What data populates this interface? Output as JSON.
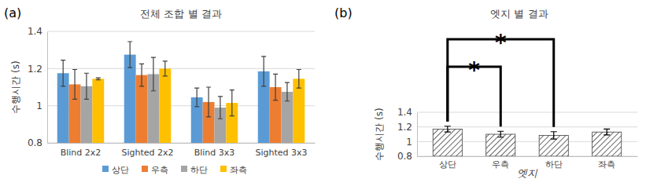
{
  "chart_data": [
    {
      "type": "bar",
      "panel_label": "(a)",
      "title": "전체 조합 별 결과",
      "y_label": "수행시간 (s)",
      "categories": [
        "Blind 2x2",
        "Sighted 2x2",
        "Blind 3x3",
        "Sighted 3x3"
      ],
      "series": [
        {
          "name": "상단",
          "color": "#5b9bd5",
          "values": [
            1.175,
            1.275,
            1.045,
            1.185
          ],
          "errors": [
            0.07,
            0.07,
            0.05,
            0.08
          ]
        },
        {
          "name": "우측",
          "color": "#ed7d31",
          "values": [
            1.115,
            1.165,
            1.02,
            1.1
          ],
          "errors": [
            0.08,
            0.06,
            0.08,
            0.07
          ]
        },
        {
          "name": "하단",
          "color": "#a5a5a5",
          "values": [
            1.105,
            1.17,
            0.99,
            1.075
          ],
          "errors": [
            0.07,
            0.09,
            0.06,
            0.05
          ]
        },
        {
          "name": "좌측",
          "color": "#ffc000",
          "values": [
            1.145,
            1.2,
            1.015,
            1.145
          ],
          "errors": [
            0.005,
            0.04,
            0.07,
            0.05
          ]
        }
      ],
      "ylim": [
        0.8,
        1.4
      ],
      "yticks": [
        0.8,
        1,
        1.2,
        1.4
      ],
      "grid": true,
      "legend": "bottom"
    },
    {
      "type": "bar",
      "panel_label": "(b)",
      "title": "엣지 별 결과",
      "y_label": "수행시간 (s)",
      "x_label": "엣지",
      "categories": [
        "상단",
        "우측",
        "하단",
        "좌측"
      ],
      "values": [
        1.17,
        1.1,
        1.085,
        1.13
      ],
      "errors": [
        0.04,
        0.04,
        0.05,
        0.04
      ],
      "color": "#404040",
      "ylim": [
        0.8,
        1.4
      ],
      "yticks": [
        0.8,
        1,
        1.2,
        1.4
      ],
      "grid": true,
      "annotations": [
        {
          "text": "*",
          "between": [
            "상단",
            "우측"
          ]
        },
        {
          "text": "*",
          "between": [
            "상단",
            "하단"
          ]
        }
      ]
    }
  ]
}
